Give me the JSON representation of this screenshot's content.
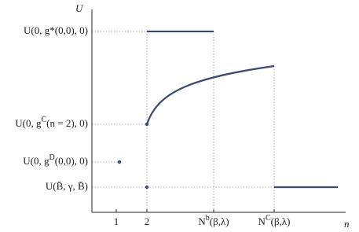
{
  "axes": {
    "y_label": "U",
    "x_label": "n"
  },
  "y_labels": [
    {
      "base": "U(0, g*(0,0), 0)"
    },
    {
      "base": "U(0, g",
      "sup": "C",
      "rest": "(n = 2), 0)"
    },
    {
      "base": "U(0, g",
      "sup": "D",
      "rest": "(0,0), 0)"
    },
    {
      "base": "U(B̄, γ, B̄)"
    }
  ],
  "x_labels": [
    {
      "base": "1"
    },
    {
      "base": "2"
    },
    {
      "base": "N",
      "sup": "b",
      "rest": "(β,λ)"
    },
    {
      "base": "N",
      "sup": "C",
      "rest": "(β,λ)"
    }
  ]
}
